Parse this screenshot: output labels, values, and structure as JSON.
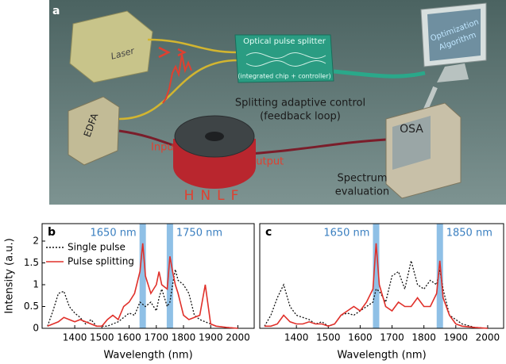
{
  "illustration": {
    "panel_label": "a",
    "laser": "Laser",
    "splitter": "Optical pulse splitter",
    "splitter_note": "(integrated chip + controller)",
    "control_line1": "Splitting adaptive control",
    "control_line2": "(feedback loop)",
    "algorithm_line1": "Optimization",
    "algorithm_line2": "Algorithm",
    "edfa": "EDFA",
    "input": "Input",
    "output": "Output",
    "osa": "OSA",
    "spectrum_line1": "Spectrum",
    "spectrum_line2": "evaluation",
    "hnlf": "HNLF"
  },
  "chart_data": [
    {
      "type": "line",
      "panel_label": "b",
      "ylabel": "Intensity (a.u.)",
      "xlabel": "Wavelength (nm)",
      "xlim": [
        1280,
        2060
      ],
      "xticks": [
        1400,
        1500,
        1600,
        1700,
        1800,
        1900,
        2000
      ],
      "ylim": [
        0,
        2.4
      ],
      "yticks": [
        0,
        0.5,
        1,
        1.5,
        2
      ],
      "legend": "upper left",
      "highlights": [
        {
          "x": 1650,
          "label": "1650 nm"
        },
        {
          "x": 1750,
          "label": "1750 nm"
        }
      ],
      "highlight_color": "#8fc0e6",
      "x": [
        1300,
        1320,
        1340,
        1360,
        1380,
        1400,
        1420,
        1440,
        1460,
        1480,
        1500,
        1520,
        1540,
        1560,
        1580,
        1600,
        1620,
        1640,
        1650,
        1660,
        1680,
        1700,
        1710,
        1720,
        1740,
        1750,
        1760,
        1770,
        1780,
        1800,
        1820,
        1840,
        1860,
        1880,
        1900,
        1920,
        1960,
        2000
      ],
      "series": [
        {
          "name": "Single pulse",
          "color": "#111111",
          "dash": true,
          "values": [
            0.05,
            0.4,
            0.8,
            0.85,
            0.5,
            0.35,
            0.25,
            0.1,
            0.2,
            0.05,
            0.05,
            0.05,
            0.1,
            0.15,
            0.25,
            0.35,
            0.3,
            0.6,
            0.55,
            0.5,
            0.6,
            0.4,
            0.7,
            0.9,
            0.5,
            0.6,
            1.0,
            1.35,
            1.1,
            1.0,
            0.8,
            0.3,
            0.2,
            0.15,
            0.1,
            0.05,
            0.02,
            0
          ]
        },
        {
          "name": "Pulse splitting",
          "color": "#e0302a",
          "dash": false,
          "values": [
            0.05,
            0.1,
            0.15,
            0.25,
            0.2,
            0.15,
            0.2,
            0.15,
            0.1,
            0.05,
            0.05,
            0.2,
            0.3,
            0.2,
            0.5,
            0.6,
            0.8,
            1.3,
            1.95,
            1.2,
            0.8,
            1.0,
            1.3,
            1.0,
            0.9,
            1.65,
            1.3,
            1.0,
            0.8,
            0.3,
            0.2,
            0.25,
            0.3,
            1.0,
            0.1,
            0.05,
            0.02,
            0
          ]
        }
      ]
    },
    {
      "type": "line",
      "panel_label": "c",
      "xlabel": "Wavelength (nm)",
      "xlim": [
        1285,
        2050
      ],
      "xticks": [
        1400,
        1500,
        1600,
        1700,
        1800,
        1900,
        2000
      ],
      "ylim": [
        0,
        2.4
      ],
      "highlights": [
        {
          "x": 1650,
          "label": "1650 nm"
        },
        {
          "x": 1850,
          "label": "1850 nm"
        }
      ],
      "highlight_color": "#8fc0e6",
      "x": [
        1300,
        1320,
        1340,
        1360,
        1380,
        1400,
        1420,
        1440,
        1460,
        1480,
        1500,
        1520,
        1540,
        1560,
        1580,
        1600,
        1620,
        1640,
        1650,
        1660,
        1680,
        1700,
        1720,
        1740,
        1760,
        1780,
        1800,
        1820,
        1840,
        1850,
        1860,
        1880,
        1900,
        1920,
        1960,
        2000
      ],
      "series": [
        {
          "name": "Single pulse",
          "color": "#111111",
          "dash": true,
          "values": [
            0.05,
            0.3,
            0.7,
            1.0,
            0.5,
            0.3,
            0.25,
            0.2,
            0.1,
            0.15,
            0.05,
            0.1,
            0.3,
            0.35,
            0.3,
            0.4,
            0.5,
            0.6,
            0.9,
            0.85,
            0.6,
            1.2,
            1.3,
            0.9,
            1.55,
            1.0,
            0.9,
            1.1,
            1.0,
            1.35,
            0.9,
            0.3,
            0.2,
            0.1,
            0.02,
            0
          ]
        },
        {
          "name": "Pulse splitting",
          "color": "#e0302a",
          "dash": false,
          "values": [
            0.05,
            0.05,
            0.1,
            0.3,
            0.15,
            0.1,
            0.1,
            0.15,
            0.1,
            0.1,
            0.05,
            0.1,
            0.3,
            0.4,
            0.5,
            0.4,
            0.6,
            0.9,
            1.95,
            1.0,
            0.5,
            0.4,
            0.6,
            0.5,
            0.5,
            0.7,
            0.5,
            0.5,
            0.8,
            1.55,
            0.7,
            0.3,
            0.1,
            0.05,
            0.02,
            0
          ]
        }
      ]
    }
  ]
}
